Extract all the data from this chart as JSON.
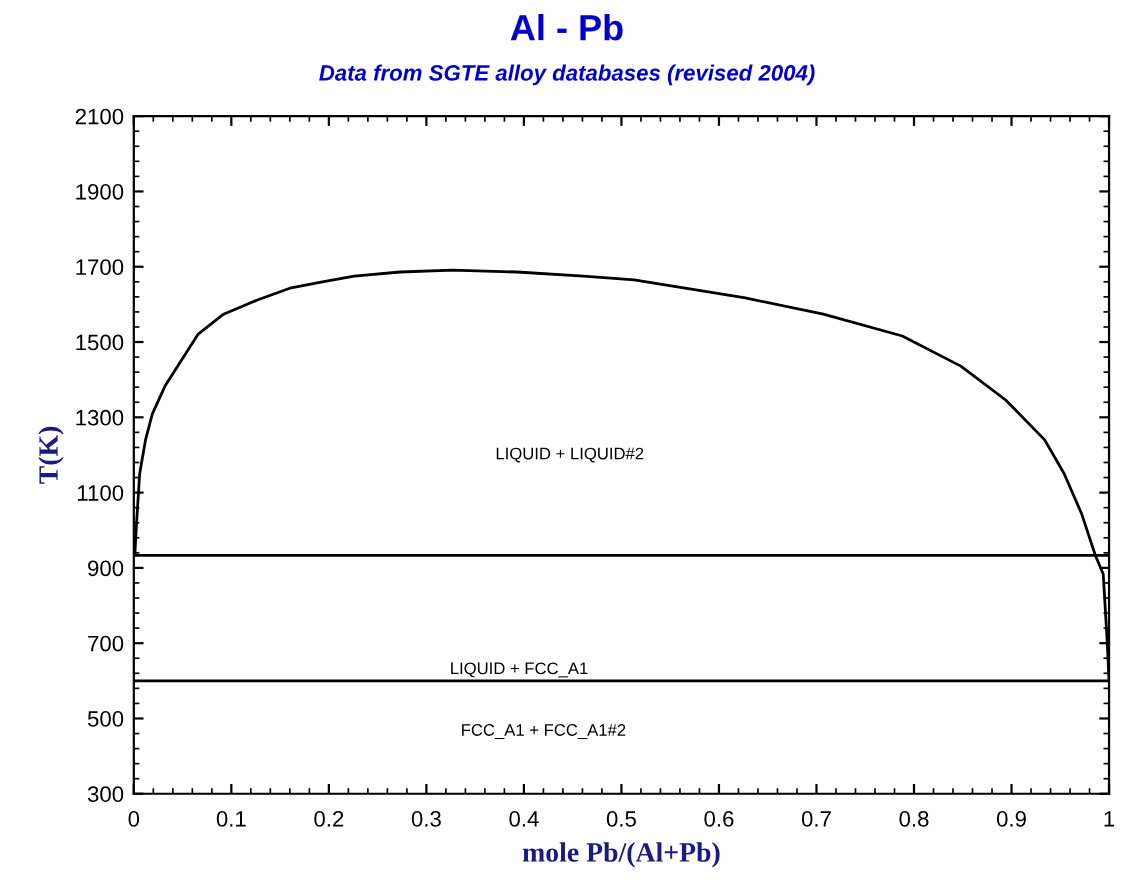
{
  "chart_data": {
    "type": "line",
    "title": "Al - Pb",
    "subtitle": "Data from SGTE alloy databases (revised 2004)",
    "xlabel": "mole Pb/(Al+Pb)",
    "ylabel": "T(K)",
    "xlim": [
      0,
      1
    ],
    "ylim": [
      300,
      2100
    ],
    "xticks": [
      0,
      0.1,
      0.2,
      0.3,
      0.4,
      0.5,
      0.6,
      0.7,
      0.8,
      0.9,
      1
    ],
    "yticks": [
      300,
      500,
      700,
      900,
      1100,
      1300,
      1500,
      1700,
      1900,
      2100
    ],
    "grid": false,
    "legend": false,
    "marker": "none",
    "line_style": "solid",
    "series": [
      {
        "color": "#000000",
        "x": [
          0.001,
          0.003,
          0.006,
          0.012,
          0.019,
          0.032,
          0.049,
          0.066,
          0.092,
          0.126,
          0.16,
          0.192,
          0.226,
          0.273,
          0.327,
          0.393,
          0.461,
          0.513,
          0.627,
          0.707,
          0.788,
          0.848,
          0.894,
          0.934,
          0.954,
          0.972,
          0.986,
          0.994,
          0.998,
          1.0
        ],
        "values": [
          933,
          1027,
          1150,
          1240,
          1309,
          1383,
          1452,
          1521,
          1574,
          1611,
          1643,
          1659,
          1675,
          1686,
          1691,
          1686,
          1675,
          1665,
          1617,
          1574,
          1516,
          1436,
          1346,
          1240,
          1150,
          1043,
          933,
          884,
          710,
          600
        ]
      }
    ],
    "ref_lines": [
      {
        "axis": "y",
        "value": 933,
        "color": "#000000"
      },
      {
        "axis": "y",
        "value": 600,
        "color": "#000000"
      }
    ],
    "annotations": [
      "LIQUID + LIQUID#2",
      "LIQUID + FCC_A1",
      "FCC_A1 + FCC_A1#2"
    ]
  }
}
